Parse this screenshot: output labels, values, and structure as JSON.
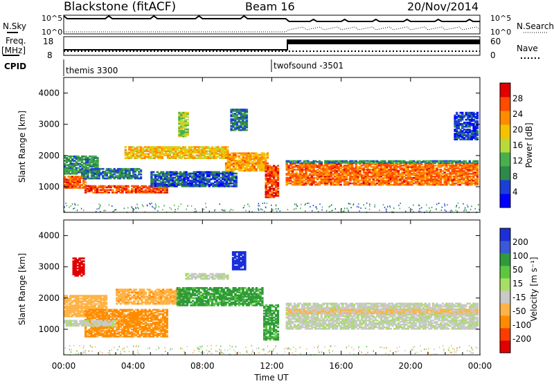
{
  "header": {
    "station": "Blackstone (fitACF)",
    "beam": "Beam 16",
    "date": "20/Nov/2014"
  },
  "status_panels": {
    "nsky_label": "N.Sky",
    "nsky_ticks": [
      "10^5",
      "10^0"
    ],
    "nsearch_label": "N.Search",
    "nsearch_ticks": [
      "10^5",
      "10^0"
    ],
    "freq_label_1": "Freq.",
    "freq_label_2": "[MHz]",
    "freq_ticks": [
      "18",
      "8"
    ],
    "nave_label": "Nave",
    "nave_ticks": [
      "60",
      "0"
    ],
    "cpid_label": "CPID",
    "cpid_segments": [
      {
        "name": "themis 3300",
        "start_hour": 0
      },
      {
        "name": "twofsound -3501",
        "start_hour": 12.0
      }
    ],
    "mode_change_hour": 12.9
  },
  "colors": {
    "power_scale": [
      "#0000ff",
      "#1a3fd6",
      "#2d8a4a",
      "#47b04c",
      "#b9d93a",
      "#f5c200",
      "#ff8c00",
      "#ff4a00",
      "#e00000"
    ],
    "velocity_scale": [
      "#1a2fd9",
      "#3a58d8",
      "#2f9a3a",
      "#5dc640",
      "#a8dd66",
      "#c9c9c9",
      "#ffb347",
      "#ff8c00",
      "#ff3c00",
      "#e00000"
    ]
  },
  "chart_data": [
    {
      "type": "heatmap",
      "panel": "power",
      "ylabel": "Slant Range [km]",
      "ylim": [
        180,
        4500
      ],
      "yticks": [
        "1000",
        "2000",
        "3000",
        "4000"
      ],
      "colorbar_label": "Power [dB]",
      "colorbar_ticks": [
        "4",
        "8",
        "12",
        "16",
        "20",
        "24",
        "28"
      ],
      "colorbar_range": [
        0,
        32
      ],
      "bands": [
        {
          "t0": 0.0,
          "t1": 1.3,
          "r0": 950,
          "r1": 1350,
          "value": 26
        },
        {
          "t0": 0.0,
          "t1": 2.0,
          "r0": 1400,
          "r1": 2000,
          "value": 10
        },
        {
          "t0": 1.2,
          "t1": 6.0,
          "r0": 800,
          "r1": 1050,
          "value": 27
        },
        {
          "t0": 1.0,
          "t1": 4.5,
          "r0": 1250,
          "r1": 1600,
          "value": 8
        },
        {
          "t0": 3.5,
          "t1": 9.5,
          "r0": 1900,
          "r1": 2300,
          "value": 20
        },
        {
          "t0": 5.0,
          "t1": 10.0,
          "r0": 1000,
          "r1": 1500,
          "value": 6
        },
        {
          "t0": 9.3,
          "t1": 11.8,
          "r0": 1500,
          "r1": 2100,
          "value": 22
        },
        {
          "t0": 11.6,
          "t1": 12.4,
          "r0": 650,
          "r1": 1700,
          "value": 27
        },
        {
          "t0": 12.8,
          "t1": 23.9,
          "r0": 1050,
          "r1": 1750,
          "value": 25
        },
        {
          "t0": 12.8,
          "t1": 23.9,
          "r0": 1750,
          "r1": 1850,
          "value": 9
        },
        {
          "t0": 6.6,
          "t1": 7.2,
          "r0": 2600,
          "r1": 3400,
          "value": 15
        },
        {
          "t0": 9.6,
          "t1": 10.6,
          "r0": 2800,
          "r1": 3500,
          "value": 8
        },
        {
          "t0": 22.5,
          "t1": 23.9,
          "r0": 2500,
          "r1": 3400,
          "value": 5
        }
      ]
    },
    {
      "type": "heatmap",
      "panel": "velocity",
      "xlabel": "Time UT",
      "ylabel": "Slant Range [km]",
      "ylim": [
        180,
        4500
      ],
      "yticks": [
        "1000",
        "2000",
        "3000",
        "4000"
      ],
      "xlim": [
        0,
        24
      ],
      "xticks": [
        "00:00",
        "04:00",
        "08:00",
        "12:00",
        "16:00",
        "20:00",
        "00:00"
      ],
      "colorbar_label": "Velocity [m s⁻¹]",
      "colorbar_ticks": [
        "200",
        "100",
        "50",
        "15",
        "-15",
        "-50",
        "-100",
        "-200"
      ],
      "bands": [
        {
          "t0": 0.5,
          "t1": 1.2,
          "r0": 2700,
          "r1": 3300,
          "value": -200
        },
        {
          "t0": 0.0,
          "t1": 2.5,
          "r0": 1400,
          "r1": 2100,
          "value": -30
        },
        {
          "t0": 1.2,
          "t1": 6.0,
          "r0": 750,
          "r1": 1650,
          "value": -60
        },
        {
          "t0": 0.0,
          "t1": 3.0,
          "r0": 1100,
          "r1": 1300,
          "value": 0
        },
        {
          "t0": 3.0,
          "t1": 7.0,
          "r0": 1800,
          "r1": 2300,
          "value": -40
        },
        {
          "t0": 6.5,
          "t1": 11.5,
          "r0": 1750,
          "r1": 2350,
          "value": 40
        },
        {
          "t0": 7.0,
          "t1": 9.5,
          "r0": 2600,
          "r1": 2800,
          "value": 0
        },
        {
          "t0": 9.7,
          "t1": 10.5,
          "r0": 2900,
          "r1": 3500,
          "value": 180
        },
        {
          "t0": 11.5,
          "t1": 12.4,
          "r0": 650,
          "r1": 1800,
          "value": 40
        },
        {
          "t0": 12.8,
          "t1": 23.9,
          "r0": 1000,
          "r1": 1850,
          "value": 0
        },
        {
          "t0": 12.8,
          "t1": 23.9,
          "r0": 1500,
          "r1": 1650,
          "value": -20
        }
      ]
    }
  ]
}
